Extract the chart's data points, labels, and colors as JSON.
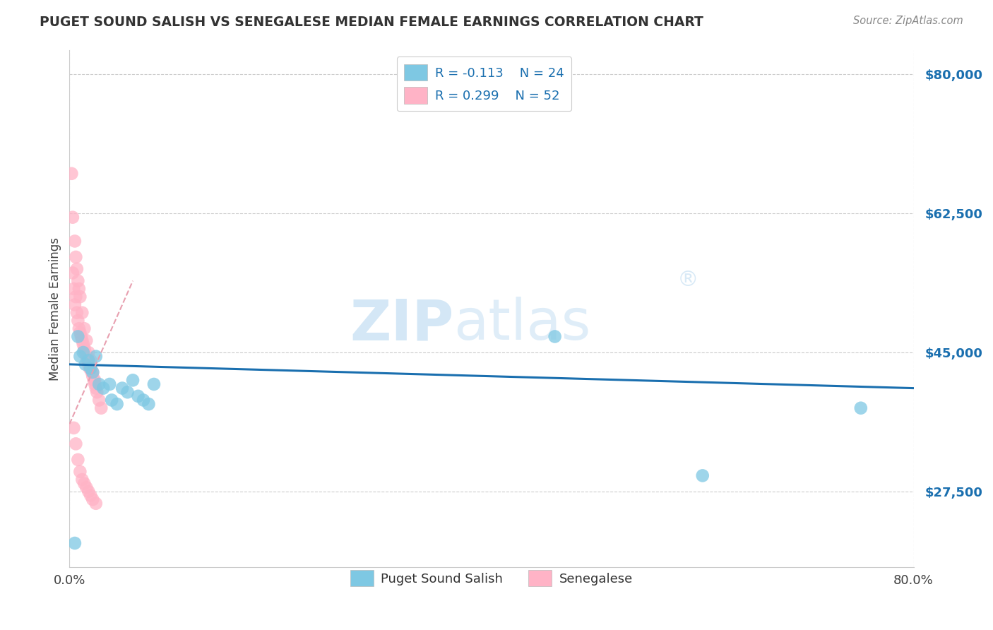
{
  "title": "PUGET SOUND SALISH VS SENEGALESE MEDIAN FEMALE EARNINGS CORRELATION CHART",
  "source": "Source: ZipAtlas.com",
  "ylabel": "Median Female Earnings",
  "xlim": [
    0.0,
    0.8
  ],
  "ylim": [
    18000,
    83000
  ],
  "yticks": [
    27500,
    45000,
    62500,
    80000
  ],
  "ytick_labels": [
    "$27,500",
    "$45,000",
    "$62,500",
    "$80,000"
  ],
  "xticks": [
    0.0,
    0.2,
    0.4,
    0.6,
    0.8
  ],
  "xtick_labels": [
    "0.0%",
    "",
    "",
    "",
    "80.0%"
  ],
  "legend_r1": "R = -0.113",
  "legend_n1": "N = 24",
  "legend_r2": "R = 0.299",
  "legend_n2": "N = 52",
  "color_blue": "#7ec8e3",
  "color_pink": "#ffb3c6",
  "color_blue_line": "#1a6faf",
  "color_pink_line": "#e8648a",
  "color_pink_line_dash": "#e8a0b0",
  "bg_color": "#ffffff",
  "grid_color": "#cccccc",
  "title_color": "#404040",
  "blue_scatter_x": [
    0.005,
    0.008,
    0.01,
    0.013,
    0.015,
    0.018,
    0.02,
    0.022,
    0.025,
    0.028,
    0.032,
    0.038,
    0.04,
    0.045,
    0.05,
    0.055,
    0.06,
    0.065,
    0.07,
    0.075,
    0.08,
    0.46,
    0.6,
    0.75
  ],
  "blue_scatter_y": [
    21000,
    47000,
    44500,
    45000,
    43500,
    44000,
    43000,
    42500,
    44500,
    41000,
    40500,
    41000,
    39000,
    38500,
    40500,
    40000,
    41500,
    39500,
    39000,
    38500,
    41000,
    47000,
    29500,
    38000
  ],
  "pink_scatter_x": [
    0.002,
    0.003,
    0.004,
    0.005,
    0.006,
    0.007,
    0.008,
    0.009,
    0.01,
    0.011,
    0.012,
    0.013,
    0.014,
    0.015,
    0.016,
    0.017,
    0.018,
    0.019,
    0.02,
    0.021,
    0.022,
    0.023,
    0.024,
    0.025,
    0.003,
    0.005,
    0.006,
    0.007,
    0.008,
    0.009,
    0.01,
    0.012,
    0.014,
    0.016,
    0.018,
    0.02,
    0.022,
    0.024,
    0.026,
    0.028,
    0.03,
    0.004,
    0.006,
    0.008,
    0.01,
    0.012,
    0.014,
    0.016,
    0.018,
    0.02,
    0.022,
    0.025
  ],
  "pink_scatter_y": [
    67500,
    55000,
    53000,
    51000,
    52000,
    50000,
    49000,
    48000,
    47500,
    47000,
    46500,
    46000,
    45500,
    45000,
    44500,
    44000,
    43500,
    43000,
    43000,
    42500,
    42000,
    41500,
    41000,
    40500,
    62000,
    59000,
    57000,
    55500,
    54000,
    53000,
    52000,
    50000,
    48000,
    46500,
    45000,
    44000,
    42500,
    41500,
    40000,
    39000,
    38000,
    35500,
    33500,
    31500,
    30000,
    29000,
    28500,
    28000,
    27500,
    27000,
    26500,
    26000
  ],
  "blue_line_x": [
    0.0,
    0.8
  ],
  "blue_line_y": [
    43500,
    40500
  ],
  "pink_line_x": [
    0.0,
    0.06
  ],
  "pink_line_y": [
    36000,
    54000
  ]
}
